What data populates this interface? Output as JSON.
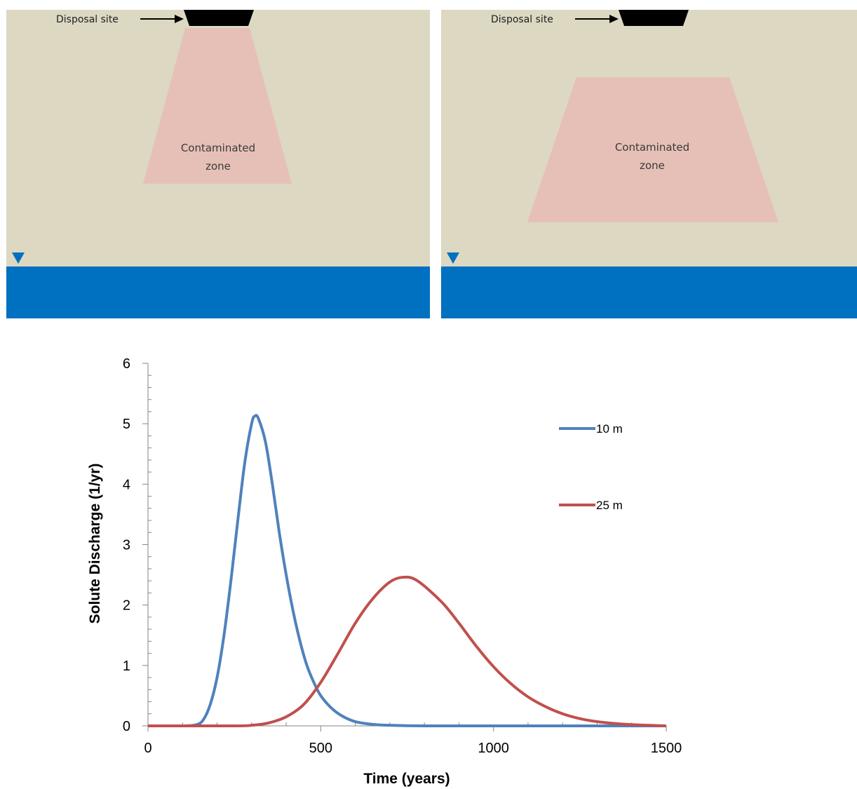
{
  "panels": [
    {
      "disposal_label": "Disposal site",
      "zone_line1": "Contaminated",
      "zone_line2": "zone"
    },
    {
      "disposal_label": "Disposal site",
      "zone_line1": "Contaminated",
      "zone_line2": "zone"
    }
  ],
  "colors": {
    "soil": "#dcd8c2",
    "zone": "#e6c0b7",
    "water": "#0070c0",
    "series_10m": "#4f81bd",
    "series_25m": "#c0504d"
  },
  "chart_data": {
    "type": "line",
    "xlabel": "Time (years)",
    "ylabel": "Solute Discharge (1/yr)",
    "xlim": [
      0,
      1500
    ],
    "ylim": [
      0,
      6
    ],
    "xticks": [
      "0",
      "500",
      "1000",
      "1500"
    ],
    "yticks": [
      "0",
      "1",
      "2",
      "3",
      "4",
      "5",
      "6"
    ],
    "legend_position": "right",
    "series": [
      {
        "name": "10 m",
        "color": "#4f81bd",
        "x": [
          0,
          100,
          140,
          160,
          180,
          200,
          220,
          240,
          260,
          280,
          300,
          310,
          320,
          340,
          360,
          380,
          400,
          420,
          440,
          460,
          480,
          500,
          530,
          560,
          600,
          650,
          700,
          800,
          1000,
          1500
        ],
        "y": [
          0,
          0,
          0.02,
          0.1,
          0.35,
          0.8,
          1.5,
          2.4,
          3.4,
          4.35,
          5.0,
          5.13,
          5.08,
          4.7,
          4.0,
          3.2,
          2.5,
          1.9,
          1.4,
          1.0,
          0.72,
          0.5,
          0.3,
          0.17,
          0.07,
          0.025,
          0.01,
          0,
          0,
          0
        ]
      },
      {
        "name": "25 m",
        "color": "#c0504d",
        "x": [
          0,
          250,
          300,
          350,
          400,
          450,
          500,
          550,
          600,
          650,
          700,
          740,
          780,
          850,
          900,
          950,
          1000,
          1050,
          1100,
          1150,
          1200,
          1250,
          1300,
          1350,
          1400,
          1450,
          1500
        ],
        "y": [
          0,
          0,
          0.01,
          0.05,
          0.15,
          0.35,
          0.72,
          1.2,
          1.7,
          2.1,
          2.38,
          2.46,
          2.4,
          2.05,
          1.7,
          1.32,
          0.98,
          0.7,
          0.48,
          0.32,
          0.2,
          0.12,
          0.07,
          0.04,
          0.02,
          0.01,
          0
        ]
      }
    ]
  }
}
